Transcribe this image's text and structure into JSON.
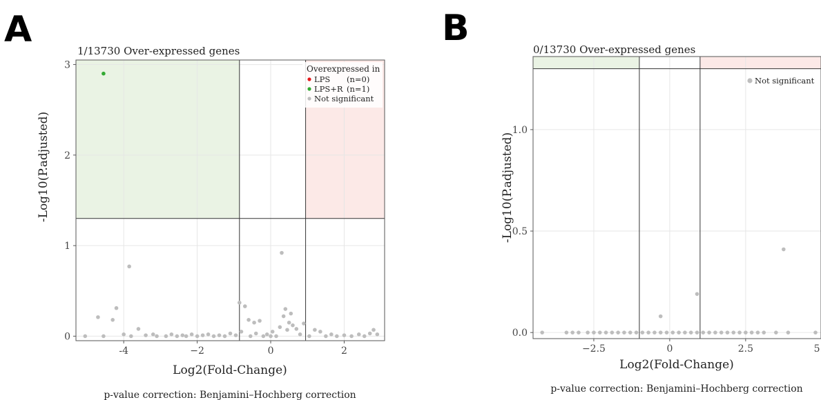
{
  "chart_data": [
    {
      "panel": "A",
      "type": "scatter",
      "title": "1/13730  Over-expressed genes",
      "xlabel": "Log2(Fold-Change)",
      "ylabel": "-Log10(P.adjusted)",
      "xlim": [
        -5.3,
        3.1
      ],
      "ylim": [
        -0.05,
        3.05
      ],
      "xticks": [
        -4,
        -2,
        0,
        2
      ],
      "xtick_labels": [
        "-4",
        "−2",
        "0",
        "2"
      ],
      "yticks": [
        0,
        1,
        2,
        3
      ],
      "ytick_labels": [
        "0",
        "1",
        "2",
        "3"
      ],
      "thresholds": {
        "x": [
          -0.85,
          0.95
        ],
        "y": 1.3
      },
      "legend_position": "top-right",
      "legend": {
        "title": "Overexpressed in",
        "items": [
          {
            "label": "LPS",
            "count": "(n=0)",
            "color": "#e41a1c"
          },
          {
            "label": "LPS+R",
            "count": "(n=1)",
            "color": "#33aa33"
          },
          {
            "label": "Not significant",
            "count": "",
            "color": "#bdbdbd"
          }
        ]
      },
      "footer": "p-value correction: Benjamini–Hochberg correction",
      "series": [
        {
          "name": "LPS+R",
          "color": "#33aa33",
          "points": [
            [
              -4.55,
              2.9
            ]
          ]
        },
        {
          "name": "Not significant",
          "color": "#bdbdbd",
          "points": [
            [
              -5.05,
              0.0
            ],
            [
              -4.7,
              0.21
            ],
            [
              -4.55,
              0.0
            ],
            [
              -4.3,
              0.18
            ],
            [
              -4.2,
              0.31
            ],
            [
              -4.0,
              0.02
            ],
            [
              -3.85,
              0.77
            ],
            [
              -3.8,
              0.0
            ],
            [
              -3.6,
              0.08
            ],
            [
              -3.4,
              0.01
            ],
            [
              -3.2,
              0.02
            ],
            [
              -3.1,
              0.0
            ],
            [
              -2.85,
              0.0
            ],
            [
              -2.7,
              0.02
            ],
            [
              -2.55,
              0.0
            ],
            [
              -2.4,
              0.01
            ],
            [
              -2.3,
              0.0
            ],
            [
              -2.15,
              0.02
            ],
            [
              -2.0,
              0.0
            ],
            [
              -1.85,
              0.01
            ],
            [
              -1.7,
              0.02
            ],
            [
              -1.55,
              0.0
            ],
            [
              -1.4,
              0.01
            ],
            [
              -1.25,
              0.0
            ],
            [
              -1.1,
              0.03
            ],
            [
              -0.95,
              0.01
            ],
            [
              -0.85,
              0.37
            ],
            [
              -0.8,
              0.05
            ],
            [
              -0.7,
              0.33
            ],
            [
              -0.6,
              0.18
            ],
            [
              -0.55,
              0.0
            ],
            [
              -0.45,
              0.15
            ],
            [
              -0.4,
              0.03
            ],
            [
              -0.3,
              0.17
            ],
            [
              -0.2,
              0.0
            ],
            [
              -0.1,
              0.02
            ],
            [
              0.0,
              0.0
            ],
            [
              0.05,
              0.05
            ],
            [
              0.15,
              0.0
            ],
            [
              0.25,
              0.1
            ],
            [
              0.3,
              0.92
            ],
            [
              0.35,
              0.22
            ],
            [
              0.4,
              0.3
            ],
            [
              0.45,
              0.07
            ],
            [
              0.5,
              0.15
            ],
            [
              0.55,
              0.25
            ],
            [
              0.6,
              0.12
            ],
            [
              0.7,
              0.08
            ],
            [
              0.8,
              0.02
            ],
            [
              0.9,
              0.14
            ],
            [
              1.05,
              0.0
            ],
            [
              1.2,
              0.07
            ],
            [
              1.35,
              0.05
            ],
            [
              1.5,
              0.0
            ],
            [
              1.65,
              0.02
            ],
            [
              1.8,
              0.0
            ],
            [
              2.0,
              0.01
            ],
            [
              2.2,
              0.0
            ],
            [
              2.4,
              0.02
            ],
            [
              2.55,
              0.0
            ],
            [
              2.7,
              0.03
            ],
            [
              2.8,
              0.07
            ],
            [
              2.9,
              0.02
            ]
          ]
        }
      ]
    },
    {
      "panel": "B",
      "type": "scatter",
      "title": "0/13730  Over-expressed genes",
      "xlabel": "Log2(Fold-Change)",
      "ylabel": "-Log10(P.adjusted)",
      "xlim": [
        -4.5,
        5.3
      ],
      "ylim": [
        -0.03,
        1.36
      ],
      "xticks": [
        -2.5,
        0,
        2.5,
        5.0
      ],
      "xtick_labels": [
        "−2.5",
        "0",
        "2.5",
        "5.0"
      ],
      "yticks": [
        0.0,
        0.5,
        1.0
      ],
      "ytick_labels": [
        "0.0",
        "0.5",
        "1.0"
      ],
      "thresholds": {
        "x": [
          -1.0,
          1.0
        ],
        "y": 1.3
      },
      "legend_position": "top-right",
      "legend": {
        "items": [
          {
            "label": "Not significant",
            "color": "#bdbdbd"
          }
        ]
      },
      "footer": "p-value correction: Benjamini–Hochberg correction",
      "series": [
        {
          "name": "Not significant",
          "color": "#bdbdbd",
          "points": [
            [
              -4.2,
              0.0
            ],
            [
              -3.4,
              0.0
            ],
            [
              -3.2,
              0.0
            ],
            [
              -3.0,
              0.0
            ],
            [
              -2.7,
              0.0
            ],
            [
              -2.5,
              0.0
            ],
            [
              -2.3,
              0.0
            ],
            [
              -2.1,
              0.0
            ],
            [
              -1.9,
              0.0
            ],
            [
              -1.7,
              0.0
            ],
            [
              -1.5,
              0.0
            ],
            [
              -1.3,
              0.0
            ],
            [
              -1.1,
              0.0
            ],
            [
              -0.9,
              0.0
            ],
            [
              -0.7,
              0.0
            ],
            [
              -0.5,
              0.0
            ],
            [
              -0.3,
              0.08
            ],
            [
              -0.3,
              0.0
            ],
            [
              -0.1,
              0.0
            ],
            [
              0.1,
              0.0
            ],
            [
              0.3,
              0.0
            ],
            [
              0.5,
              0.0
            ],
            [
              0.7,
              0.0
            ],
            [
              0.9,
              0.19
            ],
            [
              0.9,
              0.0
            ],
            [
              1.1,
              0.0
            ],
            [
              1.3,
              0.0
            ],
            [
              1.5,
              0.0
            ],
            [
              1.7,
              0.0
            ],
            [
              1.9,
              0.0
            ],
            [
              2.1,
              0.0
            ],
            [
              2.3,
              0.0
            ],
            [
              2.5,
              0.0
            ],
            [
              2.7,
              0.0
            ],
            [
              2.9,
              0.0
            ],
            [
              3.1,
              0.0
            ],
            [
              3.5,
              0.0
            ],
            [
              3.75,
              0.41
            ],
            [
              3.9,
              0.0
            ],
            [
              4.8,
              0.0
            ],
            [
              5.0,
              0.0
            ]
          ]
        }
      ]
    }
  ]
}
